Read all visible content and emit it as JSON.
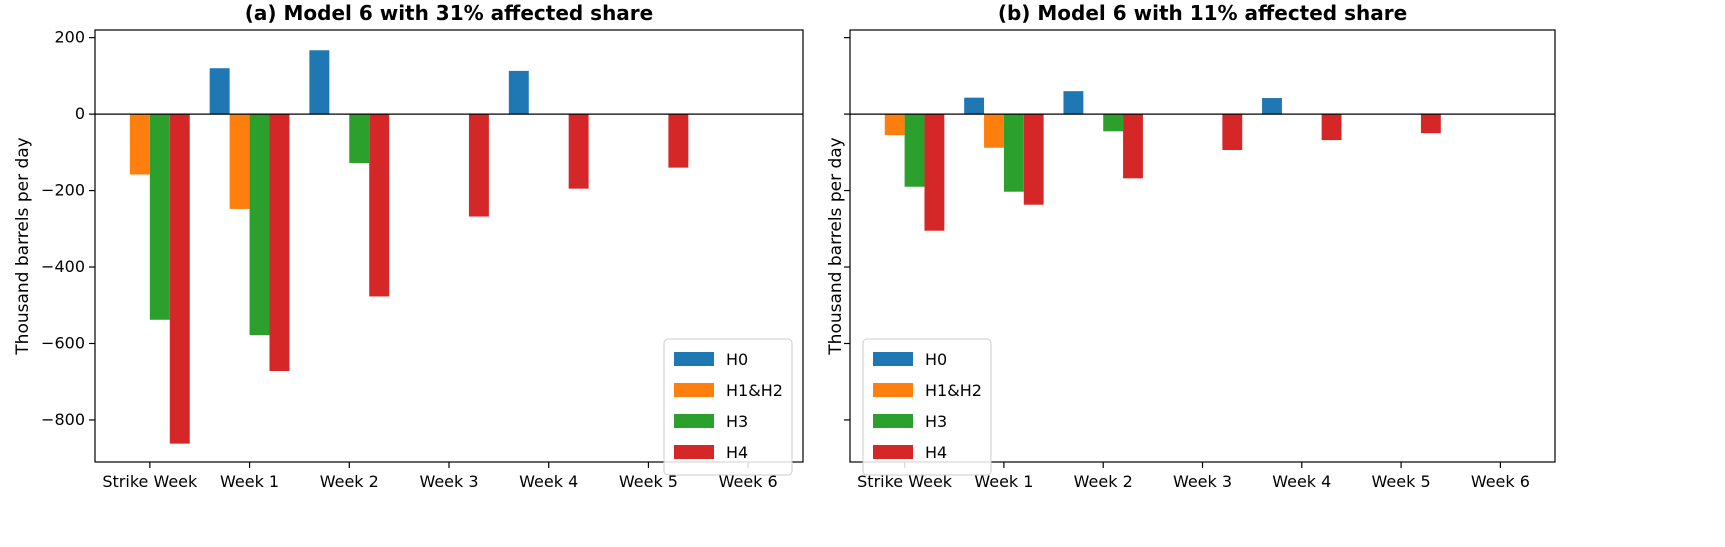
{
  "chart_data": [
    {
      "type": "bar",
      "title": "(a) Model 6 with 31% affected share",
      "xlabel": "",
      "ylabel": "Thousand barrels per day",
      "categories": [
        "Strike Week",
        "Week 1",
        "Week 2",
        "Week 3",
        "Week 4",
        "Week 5",
        "Week 6"
      ],
      "series": [
        {
          "name": "H0",
          "color": "#1f77b4",
          "values": [
            0,
            120,
            167,
            0,
            113,
            0,
            0
          ]
        },
        {
          "name": "H1&H2",
          "color": "#ff7f0e",
          "values": [
            -158,
            -248,
            0,
            0,
            0,
            0,
            0
          ]
        },
        {
          "name": "H3",
          "color": "#2ca02c",
          "values": [
            -538,
            -578,
            -128,
            0,
            0,
            0,
            0
          ]
        },
        {
          "name": "H4",
          "color": "#d62728",
          "values": [
            -862,
            -672,
            -477,
            -268,
            -195,
            -140,
            0
          ]
        }
      ],
      "ylim": [
        -910,
        220
      ],
      "yticks": [
        200,
        0,
        -200,
        -400,
        -600,
        -800
      ],
      "ytick_labels": [
        "200",
        "0",
        "−200",
        "−400",
        "−600",
        "−800"
      ],
      "show_ytick_labels": true,
      "zero_line": true,
      "legend_position": "lower-right"
    },
    {
      "type": "bar",
      "title": "(b) Model 6 with 11% affected share",
      "xlabel": "",
      "ylabel": "Thousand barrels per day",
      "categories": [
        "Strike Week",
        "Week 1",
        "Week 2",
        "Week 3",
        "Week 4",
        "Week 5",
        "Week 6"
      ],
      "series": [
        {
          "name": "H0",
          "color": "#1f77b4",
          "values": [
            0,
            43,
            60,
            0,
            42,
            0,
            0
          ]
        },
        {
          "name": "H1&H2",
          "color": "#ff7f0e",
          "values": [
            -55,
            -88,
            0,
            0,
            0,
            0,
            0
          ]
        },
        {
          "name": "H3",
          "color": "#2ca02c",
          "values": [
            -190,
            -203,
            -45,
            0,
            0,
            0,
            0
          ]
        },
        {
          "name": "H4",
          "color": "#d62728",
          "values": [
            -305,
            -237,
            -168,
            -94,
            -68,
            -50,
            0
          ]
        }
      ],
      "ylim": [
        -910,
        220
      ],
      "yticks": [
        200,
        0,
        -200,
        -400,
        -600,
        -800
      ],
      "ytick_labels": [
        "200",
        "0",
        "−200",
        "−400",
        "−600",
        "−800"
      ],
      "show_ytick_labels": false,
      "zero_line": true,
      "legend_position": "lower-left"
    }
  ]
}
